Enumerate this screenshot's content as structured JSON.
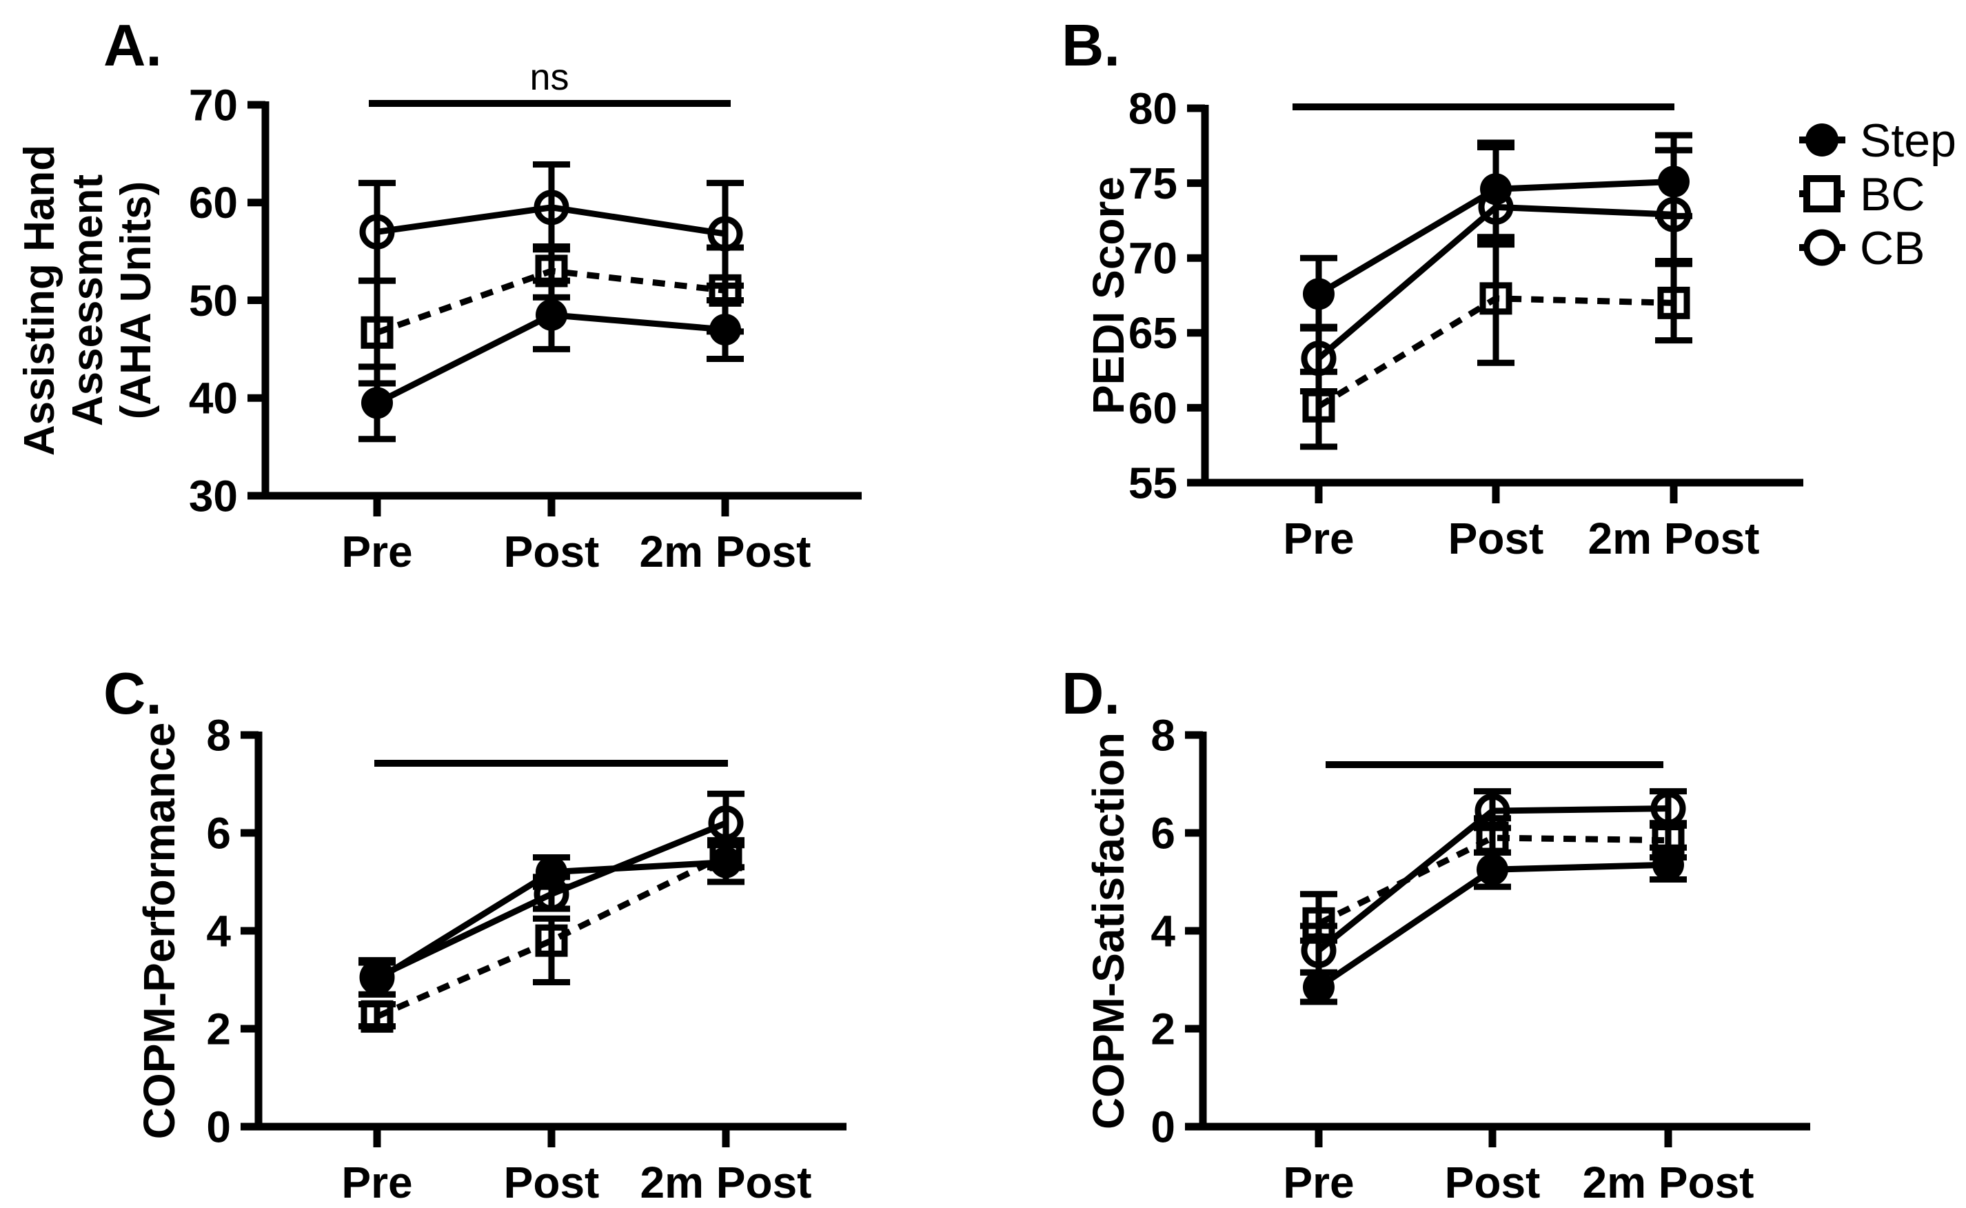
{
  "figure": {
    "background": "#ffffff",
    "ink": "#000000"
  },
  "legend": {
    "items": [
      {
        "label": "Step",
        "marker": "filled-circle",
        "line": "solid"
      },
      {
        "label": "BC",
        "marker": "open-square",
        "line": "dashed"
      },
      {
        "label": "CB",
        "marker": "open-circle",
        "line": "solid"
      }
    ]
  },
  "chart_data": [
    {
      "type": "line",
      "panel_label": "A.",
      "ylabel_lines": [
        "Assisting Hand",
        "Assessment",
        "(AHA Units)"
      ],
      "categories": [
        "Pre",
        "Post",
        "2m Post"
      ],
      "ylim": [
        30,
        70
      ],
      "yticks": [
        70,
        60,
        50,
        40,
        30
      ],
      "annotation": "ns",
      "sig_bar": true,
      "series": [
        {
          "name": "Step",
          "values": [
            39.5,
            48.5,
            47.0
          ],
          "err_lo": [
            35.8,
            45.0,
            44.0
          ],
          "err_hi": [
            43.2,
            52.0,
            50.0
          ]
        },
        {
          "name": "BC",
          "values": [
            46.7,
            53.0,
            51.0
          ],
          "err_lo": [
            41.5,
            50.3,
            46.8
          ],
          "err_hi": [
            52.0,
            55.5,
            55.4
          ]
        },
        {
          "name": "CB",
          "values": [
            57.0,
            59.5,
            56.8
          ],
          "err_lo": [
            52.0,
            55.2,
            51.5
          ],
          "err_hi": [
            62.0,
            63.9,
            62.0
          ]
        }
      ]
    },
    {
      "type": "line",
      "panel_label": "B.",
      "ylabel_lines": [
        "PEDI Score"
      ],
      "categories": [
        "Pre",
        "Post",
        "2m Post"
      ],
      "ylim": [
        55,
        80
      ],
      "yticks": [
        80,
        75,
        70,
        65,
        60,
        55
      ],
      "annotation": "",
      "sig_bar": true,
      "series": [
        {
          "name": "Step",
          "values": [
            67.6,
            74.6,
            75.1
          ],
          "err_lo": [
            65.3,
            71.4,
            72.8
          ],
          "err_hi": [
            70.0,
            77.7,
            78.2
          ]
        },
        {
          "name": "BC",
          "values": [
            60.1,
            67.3,
            67.0
          ],
          "err_lo": [
            57.4,
            63.0,
            64.5
          ],
          "err_hi": [
            62.4,
            71.0,
            69.6
          ]
        },
        {
          "name": "CB",
          "values": [
            63.3,
            73.4,
            72.9
          ],
          "err_lo": [
            61.1,
            70.9,
            69.8
          ],
          "err_hi": [
            65.4,
            77.4,
            77.2
          ]
        }
      ]
    },
    {
      "type": "line",
      "panel_label": "C.",
      "ylabel_lines": [
        "COPM-Performance"
      ],
      "categories": [
        "Pre",
        "Post",
        "2m Post"
      ],
      "ylim": [
        0,
        8
      ],
      "yticks": [
        8,
        6,
        4,
        2,
        0
      ],
      "annotation": "",
      "sig_bar": true,
      "series": [
        {
          "name": "Step",
          "values": [
            3.0,
            5.2,
            5.4
          ],
          "err_lo": [
            2.7,
            4.9,
            5.0
          ],
          "err_hi": [
            3.35,
            5.5,
            5.75
          ]
        },
        {
          "name": "BC",
          "values": [
            2.25,
            3.8,
            5.55
          ],
          "err_lo": [
            2.05,
            2.95,
            5.3
          ],
          "err_hi": [
            2.5,
            4.25,
            5.8
          ]
        },
        {
          "name": "CB",
          "values": [
            3.05,
            4.75,
            6.2
          ],
          "err_lo": [
            2.7,
            4.45,
            5.85
          ],
          "err_hi": [
            3.4,
            5.1,
            6.8
          ]
        }
      ]
    },
    {
      "type": "line",
      "panel_label": "D.",
      "ylabel_lines": [
        "COPM-Satisfaction"
      ],
      "categories": [
        "Pre",
        "Post",
        "2m Post"
      ],
      "ylim": [
        0,
        8
      ],
      "yticks": [
        8,
        6,
        4,
        2,
        0
      ],
      "annotation": "",
      "sig_bar": true,
      "series": [
        {
          "name": "Step",
          "values": [
            2.85,
            5.25,
            5.35
          ],
          "err_lo": [
            2.55,
            4.9,
            5.05
          ],
          "err_hi": [
            3.15,
            5.6,
            5.7
          ]
        },
        {
          "name": "BC",
          "values": [
            4.15,
            5.9,
            5.85
          ],
          "err_lo": [
            3.8,
            5.6,
            5.5
          ],
          "err_hi": [
            4.75,
            6.3,
            6.2
          ]
        },
        {
          "name": "CB",
          "values": [
            3.6,
            6.45,
            6.5
          ],
          "err_lo": [
            3.15,
            6.1,
            6.15
          ],
          "err_hi": [
            4.1,
            6.85,
            6.85
          ]
        }
      ]
    }
  ]
}
